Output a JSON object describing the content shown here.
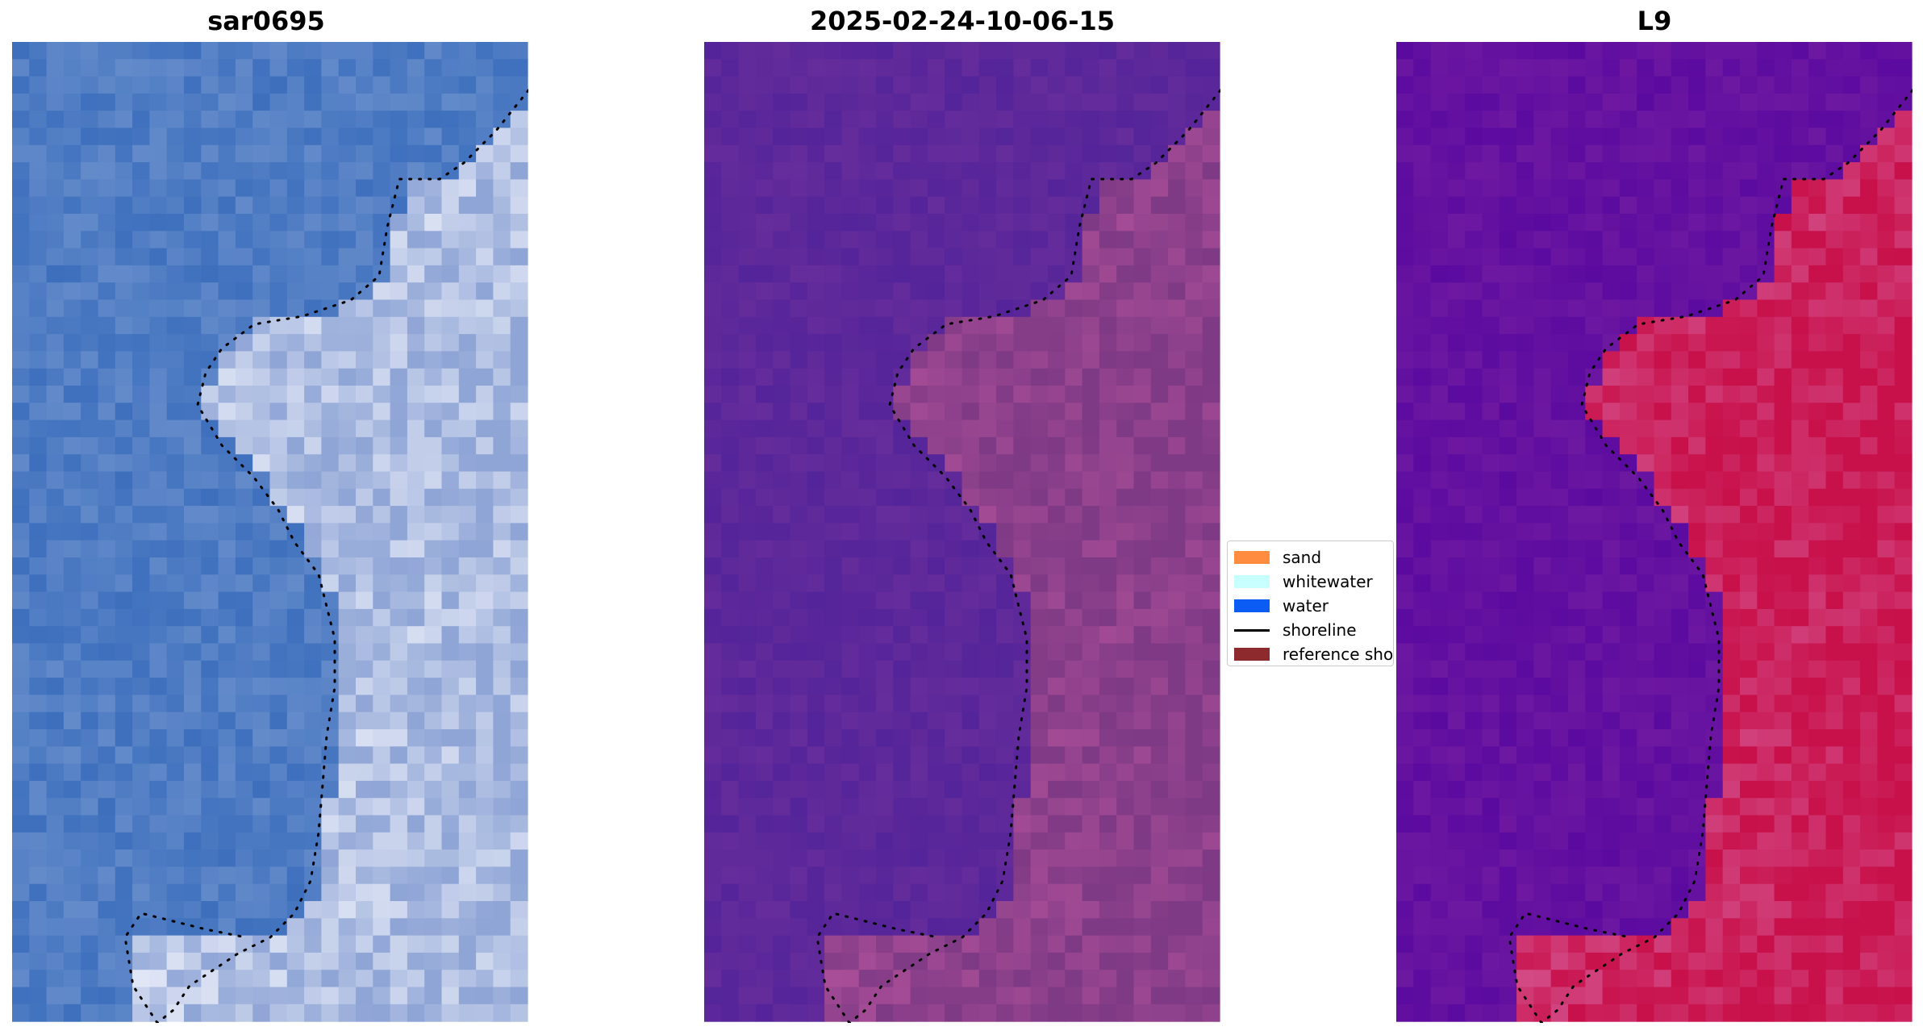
{
  "panels": [
    {
      "title": "sar0695",
      "kind": "rgb"
    },
    {
      "title": "2025-02-24-10-06-15",
      "kind": "classification"
    },
    {
      "title": "L9",
      "kind": "mndwi"
    }
  ],
  "legend": {
    "items": [
      {
        "label": "sand",
        "color": "#ff8c3f",
        "type": "patch"
      },
      {
        "label": "whitewater",
        "color": "#c8ffff",
        "type": "patch"
      },
      {
        "label": "water",
        "color": "#0a5cf5",
        "type": "patch"
      },
      {
        "label": "shoreline",
        "color": "#000000",
        "type": "line"
      },
      {
        "label": "reference shoreline",
        "color": "#8c2a2e",
        "type": "patch"
      }
    ]
  },
  "colors": {
    "rgb_water": "#3d6fbd",
    "rgb_land": "#8fa5d6",
    "class_water": "#54249a",
    "class_land": "#7f3a85",
    "mndwi_water": "#5b0aa0",
    "mndwi_land": "#c8104a"
  }
}
